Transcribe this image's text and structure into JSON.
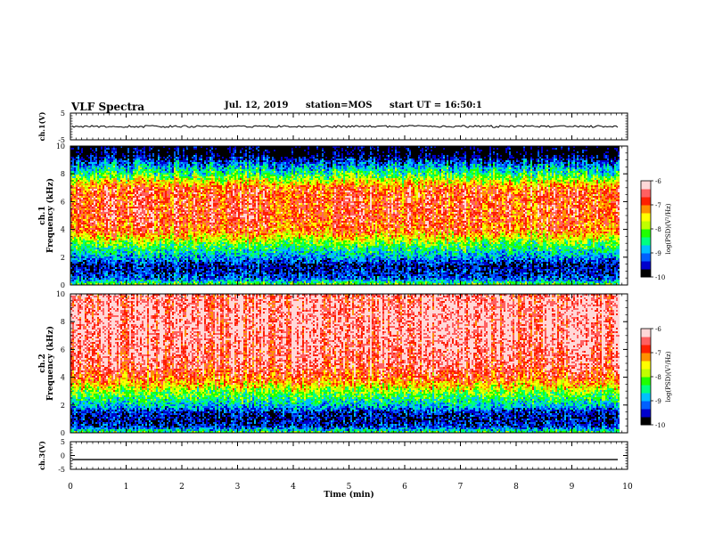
{
  "header": {
    "title": "VLF Spectra",
    "date": "Jul. 12, 2019",
    "station": "station=MOS",
    "start_time": "start UT = 16:50:1"
  },
  "colors": {
    "palette": [
      "#000000",
      "#0000cc",
      "#0060ff",
      "#00c0ff",
      "#00ff80",
      "#20ff00",
      "#c0ff00",
      "#ffff00",
      "#ff9000",
      "#ff2000",
      "#ff6060",
      "#ffd8d8"
    ],
    "trace": "#000000",
    "saturated_band": "#000000"
  },
  "chart_data": [
    {
      "type": "line",
      "name": "ch1-waveform",
      "ylabel": "ch.1(V)",
      "ylim": [
        -5,
        5
      ],
      "yticks": [
        "5",
        "-5"
      ],
      "x": [
        0,
        1,
        2,
        3,
        4,
        5,
        6,
        7,
        8,
        9,
        9.85
      ],
      "values": [
        0,
        0,
        0,
        0,
        0,
        0,
        0,
        0,
        0,
        0,
        0
      ],
      "noisy": true
    },
    {
      "type": "heatmap",
      "name": "ch1-spectrogram",
      "ylabel_line1": "ch.1",
      "ylabel_line2": "Frequency (kHz)",
      "xlim": [
        0,
        10
      ],
      "data_x_end": 9.85,
      "ylim": [
        0,
        10
      ],
      "yticks": [
        "0",
        "2",
        "4",
        "6",
        "8",
        "10"
      ],
      "freq_kHz": [
        0,
        0.5,
        1,
        1.5,
        2,
        2.5,
        3,
        3.5,
        4,
        5,
        6,
        7,
        7.5,
        8,
        8.5,
        9,
        9.5,
        10
      ],
      "typical_log_psd": [
        -7.8,
        -9.2,
        -9.5,
        -9.6,
        -9.0,
        -8.6,
        -8.2,
        -7.5,
        -7.0,
        -6.8,
        -6.8,
        -6.9,
        -7.6,
        -8.3,
        -8.8,
        -9.4,
        -10.0,
        -10.0
      ],
      "colorbar": {
        "label": "log(PSD)(V²/Hz)",
        "range": [
          -10,
          -6
        ],
        "ticks": [
          "-6",
          "-7",
          "-8",
          "-9",
          "-10"
        ]
      }
    },
    {
      "type": "heatmap",
      "name": "ch2-spectrogram",
      "ylabel_line1": "ch.2",
      "ylabel_line2": "Frequency (kHz)",
      "xlim": [
        0,
        10
      ],
      "data_x_end": 9.85,
      "ylim": [
        0,
        10
      ],
      "yticks": [
        "0",
        "2",
        "4",
        "6",
        "8",
        "10"
      ],
      "freq_kHz": [
        0,
        0.5,
        1,
        1.5,
        2,
        2.5,
        3,
        3.5,
        4,
        5,
        6,
        7,
        8,
        9,
        10
      ],
      "typical_log_psd": [
        -8.0,
        -9.4,
        -9.6,
        -9.5,
        -8.8,
        -8.4,
        -8.0,
        -7.4,
        -6.9,
        -6.5,
        -6.4,
        -6.3,
        -6.3,
        -6.3,
        -6.4
      ],
      "colorbar": {
        "label": "log(PSD)(V²/Hz)",
        "range": [
          -10,
          -6
        ],
        "ticks": [
          "-6",
          "-7",
          "-8",
          "-9",
          "-10"
        ]
      }
    },
    {
      "type": "line",
      "name": "ch3-waveform",
      "ylabel": "ch.3(V)",
      "ylim": [
        -5,
        5
      ],
      "yticks": [
        "5",
        "0",
        "-5"
      ],
      "x": [
        0,
        1,
        2,
        3,
        4,
        5,
        6,
        7,
        8,
        9,
        9.85
      ],
      "values": [
        -1.5,
        -1.5,
        -1.5,
        -1.5,
        -1.5,
        -1.5,
        -1.5,
        -1.5,
        -1.5,
        -1.5,
        -1.5
      ],
      "noisy": false
    }
  ],
  "x_axis": {
    "label": "Time (min)",
    "range": [
      0,
      10
    ],
    "ticks": [
      "0",
      "1",
      "2",
      "3",
      "4",
      "5",
      "6",
      "7",
      "8",
      "9",
      "10"
    ]
  }
}
